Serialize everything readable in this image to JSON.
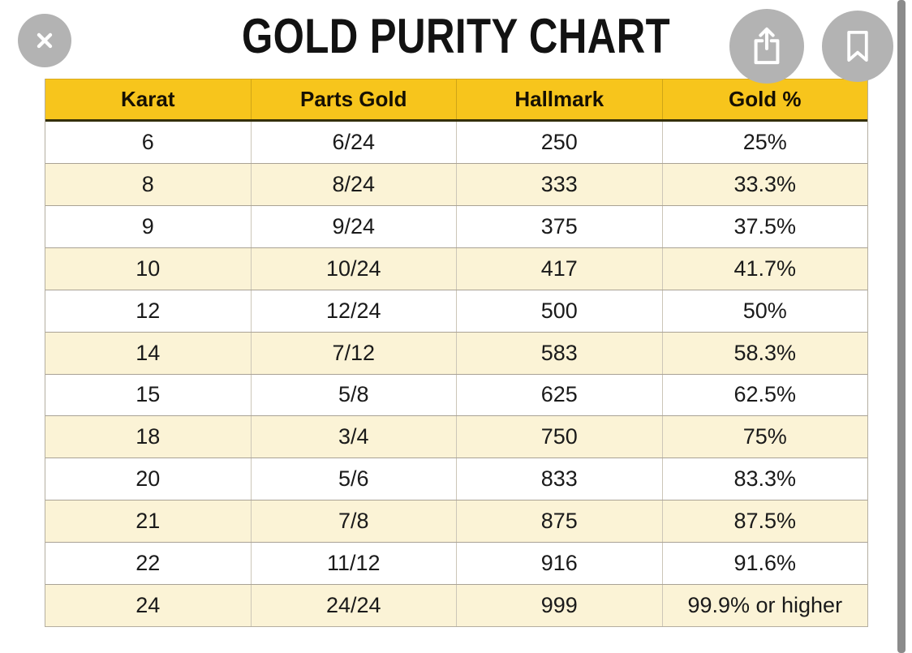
{
  "header": {
    "title": "GOLD PURITY CHART"
  },
  "toolbar": {
    "icons": {
      "close": "close-icon",
      "share": "share-icon",
      "bookmark": "bookmark-icon"
    }
  },
  "table": {
    "columns": [
      "Karat",
      "Parts Gold",
      "Hallmark",
      "Gold %"
    ],
    "rows": [
      [
        "6",
        "6/24",
        "250",
        "25%"
      ],
      [
        "8",
        "8/24",
        "333",
        "33.3%"
      ],
      [
        "9",
        "9/24",
        "375",
        "37.5%"
      ],
      [
        "10",
        "10/24",
        "417",
        "41.7%"
      ],
      [
        "12",
        "12/24",
        "500",
        "50%"
      ],
      [
        "14",
        "7/12",
        "583",
        "58.3%"
      ],
      [
        "15",
        "5/8",
        "625",
        "62.5%"
      ],
      [
        "18",
        "3/4",
        "750",
        "75%"
      ],
      [
        "20",
        "5/6",
        "833",
        "83.3%"
      ],
      [
        "21",
        "7/8",
        "875",
        "87.5%"
      ],
      [
        "22",
        "11/12",
        "916",
        "91.6%"
      ],
      [
        "24",
        "24/24",
        "999",
        "99.9% or higher"
      ]
    ]
  },
  "chart_data": {
    "type": "table",
    "title": "GOLD PURITY CHART",
    "columns": [
      "Karat",
      "Parts Gold",
      "Hallmark",
      "Gold %"
    ],
    "rows": [
      [
        "6",
        "6/24",
        "250",
        "25%"
      ],
      [
        "8",
        "8/24",
        "333",
        "33.3%"
      ],
      [
        "9",
        "9/24",
        "375",
        "37.5%"
      ],
      [
        "10",
        "10/24",
        "417",
        "41.7%"
      ],
      [
        "12",
        "12/24",
        "500",
        "50%"
      ],
      [
        "14",
        "7/12",
        "583",
        "58.3%"
      ],
      [
        "15",
        "5/8",
        "625",
        "62.5%"
      ],
      [
        "18",
        "3/4",
        "750",
        "75%"
      ],
      [
        "20",
        "5/6",
        "833",
        "83.3%"
      ],
      [
        "21",
        "7/8",
        "875",
        "87.5%"
      ],
      [
        "22",
        "11/12",
        "916",
        "91.6%"
      ],
      [
        "24",
        "24/24",
        "999",
        "99.9% or higher"
      ]
    ]
  },
  "colors": {
    "header_bg": "#F7C51C",
    "header_border_bottom": "#35300B",
    "header_border_top": "#D9A91F",
    "row_bg": "#FFFFFF",
    "row_alt_bg": "#FBF3D6",
    "grid_h": "#A9A295",
    "grid_v": "#CCC6B8",
    "table_border": "#B4AEA0",
    "title_color": "#121212",
    "text_color": "#1A1A1A",
    "header_text": "#161003",
    "circle_bg": "#B3B3B3",
    "icon_color": "#FFFFFF",
    "scrollbar": "#8B8B8B",
    "page_bg": "#FFFFFF"
  }
}
